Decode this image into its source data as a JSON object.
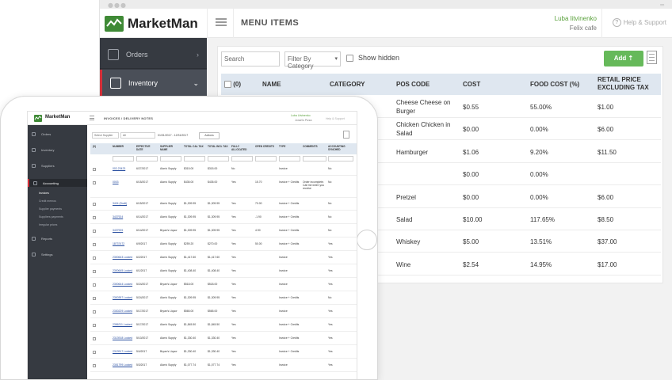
{
  "desktop": {
    "logo": "MarketMan",
    "page_title": "MENU ITEMS",
    "user_name": "Luba litvinenko",
    "user_location": "Felix cafe",
    "help_label": "Help & Support",
    "nav": [
      {
        "label": "Orders",
        "active": false
      },
      {
        "label": "Inventory",
        "active": true
      }
    ],
    "toolbar": {
      "search_placeholder": "Search",
      "filter_label": "Filter By Category",
      "show_hidden_label": "Show hidden",
      "add_label": "Add"
    },
    "table": {
      "select_count": "(0)",
      "headers": [
        "NAME",
        "CATEGORY",
        "POS CODE",
        "COST",
        "FOOD COST (%)",
        "RETAIL PRICE EXCLUDING TAX"
      ],
      "rows": [
        {
          "pos_code": "Cheese Cheese on Burger",
          "cost": "$0.55",
          "food_cost": "55.00%",
          "retail": "$1.00"
        },
        {
          "pos_code": "Chicken Chicken in Salad",
          "cost": "$0.00",
          "food_cost": "0.00%",
          "retail": "$6.00"
        },
        {
          "pos_code": "Hamburger",
          "cost": "$1.06",
          "food_cost": "9.20%",
          "retail": "$11.50"
        },
        {
          "pos_code": "",
          "cost": "$0.00",
          "food_cost": "0.00%",
          "retail": ""
        },
        {
          "pos_code": "Pretzel",
          "cost": "$0.00",
          "food_cost": "0.00%",
          "retail": "$6.00"
        },
        {
          "pos_code": "Salad",
          "cost": "$10.00",
          "food_cost": "117.65%",
          "retail": "$8.50"
        },
        {
          "pos_code": "Whiskey",
          "cost": "$5.00",
          "food_cost": "13.51%",
          "retail": "$37.00"
        },
        {
          "pos_code": "Wine",
          "cost": "$2.54",
          "food_cost": "14.95%",
          "retail": "$17.00"
        }
      ]
    }
  },
  "tablet": {
    "logo": "MarketMan",
    "page_title": "INVOICES / DELIVERY NOTES",
    "user_name": "Luba Litvinenko",
    "user_location": "Jonah's Pizza",
    "help_label": "Help & Support",
    "nav": [
      {
        "label": "Orders"
      },
      {
        "label": "Inventory"
      },
      {
        "label": "Suppliers"
      },
      {
        "label": "Accounting"
      },
      {
        "label": "Reports"
      },
      {
        "label": "Settings"
      }
    ],
    "subnav": [
      "Invoices",
      "Credit memos",
      "Supplier payments",
      "Suppliers payments",
      "Irregular prices"
    ],
    "toolbar": {
      "supplier_select": "Select Supplier",
      "all_select": "All",
      "date_range": "01/01/2017 - 12/31/2017",
      "actions_label": "Actions"
    },
    "headers": [
      "(0)",
      "NUMBER",
      "EFFECTIVE DATE",
      "SUPPLIER NAME",
      "TOTAL CAL TAX",
      "TOTAL INCL TAX",
      "FULLY ALLOCATED",
      "OPEN CREDITS",
      "TYPE",
      "COMMENTS",
      "ACCOUNTING SYNCHED"
    ],
    "rows": [
      {
        "number": "002-23423",
        "date": "6/27/2017",
        "supplier": "Alan's Supply",
        "tax": "$315.00",
        "incl": "$315.00",
        "allocated": "No",
        "credits": "",
        "type": "Invoice",
        "comments": "",
        "synched": "No"
      },
      {
        "number": "0003",
        "date": "6/15/2017",
        "supplier": "Alan's Supply",
        "tax": "$435.00",
        "incl": "$435.00",
        "allocated": "Yes",
        "credits": "15.70",
        "type": "Invoice + Credits",
        "comments": "Order incomplete. Call me when you receive",
        "synched": "No"
      },
      {
        "number": "3424 (Draft)",
        "date": "6/15/2017",
        "supplier": "Alan's Supply",
        "tax": "$1,309.95",
        "incl": "$1,309.95",
        "allocated": "Yes",
        "credits": "70.00",
        "type": "Invoice + Credits",
        "comments": "",
        "synched": "No"
      },
      {
        "number": "3437924",
        "date": "6/14/2017",
        "supplier": "Alan's Supply",
        "tax": "$1,309.95",
        "incl": "$1,309.95",
        "allocated": "Yes",
        "credits": "-1.90",
        "type": "Invoice + Credits",
        "comments": "",
        "synched": "No"
      },
      {
        "number": "3437925",
        "date": "6/14/2017",
        "supplier": "Bryan's Liquor",
        "tax": "$1,309.95",
        "incl": "$1,309.95",
        "allocated": "Yes",
        "credits": "4.90",
        "type": "Invoice + Credits",
        "comments": "",
        "synched": "No"
      },
      {
        "number": "18737472",
        "date": "6/9/2017",
        "supplier": "Alan's Supply",
        "tax": "$259.20",
        "incl": "$270.00",
        "allocated": "Yes",
        "credits": "50.00",
        "type": "Invoice + Credits",
        "comments": "",
        "synched": "Yes"
      },
      {
        "number": "2300643 Locked",
        "date": "6/2/2017",
        "supplier": "Alan's Supply",
        "tax": "$1,417.60",
        "incl": "$1,417.60",
        "allocated": "Yes",
        "credits": "",
        "type": "Invoice",
        "comments": "",
        "synched": "Yes"
      },
      {
        "number": "2300645 Locked",
        "date": "6/1/2017",
        "supplier": "Alan's Supply",
        "tax": "$1,408.40",
        "incl": "$1,408.40",
        "allocated": "Yes",
        "credits": "",
        "type": "Invoice",
        "comments": "",
        "synched": "Yes"
      },
      {
        "number": "2300644 Locked",
        "date": "5/24/2017",
        "supplier": "Bryan's Liquor",
        "tax": "$518.00",
        "incl": "$518.00",
        "allocated": "Yes",
        "credits": "",
        "type": "Invoice",
        "comments": "",
        "synched": "Yes"
      },
      {
        "number": "2300397 Locked",
        "date": "5/24/2017",
        "supplier": "Alan's Supply",
        "tax": "$1,309.95",
        "incl": "$1,309.95",
        "allocated": "Yes",
        "credits": "",
        "type": "Invoice + Credits",
        "comments": "",
        "synched": "No"
      },
      {
        "number": "2330229 Locked",
        "date": "5/17/2017",
        "supplier": "Bryan's Liquor",
        "tax": "$565.00",
        "incl": "$565.00",
        "allocated": "Yes",
        "credits": "",
        "type": "Invoice",
        "comments": "",
        "synched": "Yes"
      },
      {
        "number": "2356211 Locked",
        "date": "5/17/2017",
        "supplier": "Alan's Supply",
        "tax": "$1,845.50",
        "incl": "$1,845.50",
        "allocated": "Yes",
        "credits": "",
        "type": "Invoice + Credits",
        "comments": "",
        "synched": "Yes"
      },
      {
        "number": "2313918 Locked",
        "date": "5/10/2017",
        "supplier": "Alan's Supply",
        "tax": "$1,330.40",
        "incl": "$1,330.40",
        "allocated": "Yes",
        "credits": "",
        "type": "Invoice + Credits",
        "comments": "",
        "synched": "Yes"
      },
      {
        "number": "2313917 Locked",
        "date": "5/4/2017",
        "supplier": "Bryan's Liquor",
        "tax": "$1,330.40",
        "incl": "$1,330.40",
        "allocated": "Yes",
        "credits": "",
        "type": "Invoice + Credits",
        "comments": "",
        "synched": "Yes"
      },
      {
        "number": "2351799 Locked",
        "date": "5/3/2017",
        "supplier": "Alan's Supply",
        "tax": "$1,077.74",
        "incl": "$1,077.74",
        "allocated": "Yes",
        "credits": "",
        "type": "Invoice",
        "comments": "",
        "synched": "Yes"
      },
      {
        "number": "2351798 Locked",
        "date": "5/2/2017",
        "supplier": "Alan's Supply",
        "tax": "$1,234.56",
        "incl": "$1,234.56",
        "allocated": "Yes",
        "credits": "",
        "type": "Invoice",
        "comments": "",
        "synched": "Yes"
      }
    ]
  },
  "colors": {
    "brand_green": "#5aa13c",
    "add_button": "#66b95a",
    "sidebar": "#363a41",
    "active_marker": "#d6303a",
    "table_header": "#dfe7f0"
  }
}
